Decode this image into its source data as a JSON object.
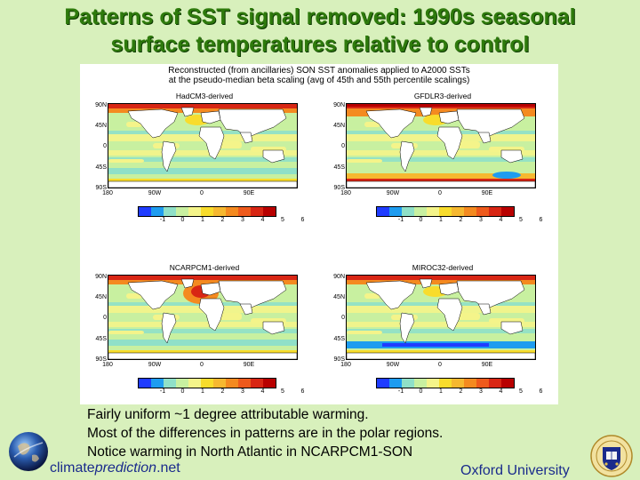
{
  "title": {
    "line1": "Patterns of SST signal removed: 1990s seasonal",
    "line2": "surface temperatures relative to control"
  },
  "figure": {
    "caption_line1": "Reconstructed (from ancillaries) SON SST anomalies applied to A2000 SSTs",
    "caption_line2": "at the pseudo-median beta scaling (avg of 45th and 55th percentile scalings)",
    "lat_labels": [
      "90N",
      "45N",
      "0",
      "45S",
      "90S"
    ],
    "lon_labels": [
      "180",
      "90W",
      "0",
      "90E"
    ],
    "colorbar_labels": [
      "-1",
      "0",
      "1",
      "2",
      "3",
      "4",
      "5",
      "6"
    ],
    "colorbar_colors": [
      "#1f3cff",
      "#1e9cf0",
      "#8fe0c8",
      "#c8f0a0",
      "#f4f48a",
      "#f8dc2c",
      "#f6b830",
      "#f48a20",
      "#ee5a1c",
      "#d82614",
      "#b80000"
    ],
    "maps": [
      {
        "label": "HadCM3-derived",
        "variant": "had"
      },
      {
        "label": "GFDLR3-derived",
        "variant": "gfdl"
      },
      {
        "label": "NCARPCM1-derived",
        "variant": "ncar"
      },
      {
        "label": "MIROC32-derived",
        "variant": "miroc"
      }
    ]
  },
  "bullets": [
    "Fairly uniform ~1 degree attributable warming.",
    "Most of the differences in patterns are in the polar regions.",
    "Notice warming in North Atlantic in NCARPCM1-SON"
  ],
  "footer": {
    "brand_part1": "climate",
    "brand_part2": "prediction",
    "brand_part3": ".net",
    "oxford": "Oxford University"
  }
}
